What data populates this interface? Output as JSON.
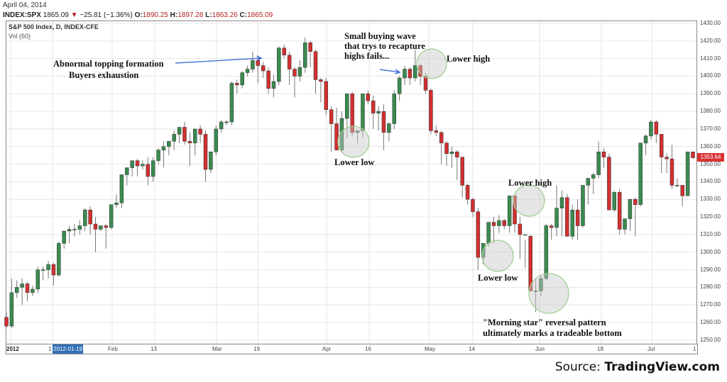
{
  "header": {
    "date": "April 04, 2014",
    "symbol": "INDEX:SPX",
    "last": "1865.09",
    "change_icon": "down-triangle-icon",
    "change": "−25.81 (−1.36%)",
    "open_label": "O:",
    "open": "1890.25",
    "high_label": "H:",
    "high": "1897.28",
    "low_label": "L:",
    "low": "1863.26",
    "close_label": "C:",
    "close": "1865.09"
  },
  "legend": {
    "series": "S&P 500 Index, D, INDEX-CFE",
    "indicator": "Vol (60)"
  },
  "price_tag": "1353.64",
  "x_selected": "2012-01-19",
  "source": {
    "prefix": "Source: ",
    "name": "TradingView.com"
  },
  "colors": {
    "up": "#3a8a4f",
    "down": "#d12f2f",
    "arrow": "#2f62d6",
    "circle": "#9fcf8f",
    "price_tag": "#d93030",
    "selection": "#2f6eb5"
  },
  "annotations": [
    {
      "id": "topping",
      "lines": [
        "Abnormal topping formation",
        "Buyers exhaustion"
      ]
    },
    {
      "id": "buying-wave",
      "lines": [
        "Small buying wave",
        "that trys to recapture",
        "highs fails..."
      ]
    },
    {
      "id": "lower-high-1",
      "lines": [
        "Lower high"
      ]
    },
    {
      "id": "lower-low-1",
      "lines": [
        "Lower low"
      ]
    },
    {
      "id": "lower-high-2",
      "lines": [
        "Lower high"
      ]
    },
    {
      "id": "lower-low-2",
      "lines": [
        "Lower low"
      ]
    },
    {
      "id": "morning-star",
      "lines": [
        "\"Morning star\" reversal pattern",
        "ultimately marks a tradeable bottom"
      ]
    }
  ],
  "chart_data": {
    "type": "candlestick",
    "title": "S&P 500 Index, D, INDEX-CFE",
    "xlabel": "",
    "ylabel": "",
    "ylim": [
      1250,
      1430
    ],
    "y_ticks": [
      "1430.00",
      "1420.00",
      "1410.00",
      "1400.00",
      "1390.00",
      "1380.00",
      "1370.00",
      "1360.00",
      "1350.00",
      "1340.00",
      "1330.00",
      "1320.00",
      "1310.00",
      "1300.00",
      "1290.00",
      "1280.00",
      "1270.00",
      "1260.00",
      "1250.00"
    ],
    "x_ticks": [
      "2012",
      "1",
      "Feb",
      "13",
      "Mar",
      "19",
      "Apr",
      "16",
      "May",
      "14",
      "Jun",
      "18",
      "Jul",
      "1"
    ],
    "grid": true,
    "candles": [
      [
        1263,
        1266,
        1257,
        1258
      ],
      [
        1258,
        1285,
        1257,
        1277
      ],
      [
        1277,
        1284,
        1274,
        1280
      ],
      [
        1280,
        1285,
        1270,
        1282
      ],
      [
        1282,
        1283,
        1272,
        1277
      ],
      [
        1277,
        1281,
        1275,
        1279
      ],
      [
        1279,
        1292,
        1277,
        1290
      ],
      [
        1290,
        1292,
        1284,
        1290
      ],
      [
        1290,
        1295,
        1285,
        1293
      ],
      [
        1293,
        1294,
        1281,
        1287
      ],
      [
        1287,
        1306,
        1286,
        1305
      ],
      [
        1305,
        1311,
        1302,
        1312
      ],
      [
        1312,
        1315,
        1305,
        1313
      ],
      [
        1313,
        1316,
        1309,
        1313
      ],
      [
        1313,
        1318,
        1310,
        1315
      ],
      [
        1315,
        1325,
        1312,
        1324
      ],
      [
        1324,
        1326,
        1310,
        1316
      ],
      [
        1316,
        1320,
        1300,
        1313
      ],
      [
        1313,
        1315,
        1312,
        1315
      ],
      [
        1315,
        1316,
        1302,
        1314
      ],
      [
        1314,
        1326,
        1313,
        1327
      ],
      [
        1327,
        1333,
        1325,
        1328
      ],
      [
        1328,
        1340,
        1325,
        1344
      ],
      [
        1344,
        1346,
        1338,
        1348
      ],
      [
        1348,
        1351,
        1343,
        1352
      ],
      [
        1352,
        1353,
        1343,
        1349
      ],
      [
        1349,
        1352,
        1347,
        1350
      ],
      [
        1350,
        1354,
        1338,
        1343
      ],
      [
        1343,
        1354,
        1340,
        1352
      ],
      [
        1352,
        1359,
        1350,
        1358
      ],
      [
        1358,
        1363,
        1348,
        1360
      ],
      [
        1360,
        1363,
        1355,
        1363
      ],
      [
        1363,
        1369,
        1358,
        1367
      ],
      [
        1367,
        1370,
        1362,
        1371
      ],
      [
        1371,
        1374,
        1361,
        1363
      ],
      [
        1363,
        1368,
        1349,
        1362
      ],
      [
        1362,
        1370,
        1355,
        1370
      ],
      [
        1370,
        1372,
        1362,
        1367
      ],
      [
        1367,
        1369,
        1340,
        1347
      ],
      [
        1347,
        1356,
        1345,
        1357
      ],
      [
        1357,
        1372,
        1355,
        1370
      ],
      [
        1370,
        1375,
        1368,
        1374
      ],
      [
        1374,
        1375,
        1372,
        1374
      ],
      [
        1374,
        1397,
        1372,
        1396
      ],
      [
        1396,
        1398,
        1390,
        1395
      ],
      [
        1395,
        1403,
        1393,
        1402
      ],
      [
        1402,
        1406,
        1400,
        1404
      ],
      [
        1404,
        1414,
        1402,
        1409
      ],
      [
        1409,
        1412,
        1396,
        1406
      ],
      [
        1406,
        1408,
        1399,
        1403
      ],
      [
        1403,
        1405,
        1390,
        1393
      ],
      [
        1393,
        1401,
        1388,
        1397
      ],
      [
        1397,
        1417,
        1395,
        1416
      ],
      [
        1416,
        1418,
        1410,
        1412
      ],
      [
        1412,
        1414,
        1395,
        1404
      ],
      [
        1404,
        1405,
        1388,
        1400
      ],
      [
        1400,
        1409,
        1397,
        1405
      ],
      [
        1405,
        1422,
        1402,
        1419
      ],
      [
        1419,
        1420,
        1405,
        1414
      ],
      [
        1414,
        1415,
        1390,
        1398
      ],
      [
        1398,
        1399,
        1385,
        1397
      ],
      [
        1397,
        1399,
        1378,
        1381
      ],
      [
        1381,
        1383,
        1357,
        1373
      ],
      [
        1373,
        1382,
        1363,
        1358
      ],
      [
        1358,
        1380,
        1357,
        1376
      ],
      [
        1376,
        1390,
        1365,
        1390
      ],
      [
        1390,
        1391,
        1366,
        1368
      ],
      [
        1368,
        1369,
        1362,
        1369
      ],
      [
        1369,
        1390,
        1365,
        1390
      ],
      [
        1390,
        1392,
        1384,
        1386
      ],
      [
        1386,
        1389,
        1370,
        1379
      ],
      [
        1379,
        1383,
        1369,
        1380
      ],
      [
        1380,
        1384,
        1358,
        1368
      ],
      [
        1368,
        1374,
        1363,
        1373
      ],
      [
        1373,
        1392,
        1370,
        1390
      ],
      [
        1390,
        1400,
        1386,
        1399
      ],
      [
        1399,
        1406,
        1395,
        1404
      ],
      [
        1404,
        1405,
        1395,
        1399
      ],
      [
        1399,
        1415,
        1397,
        1406
      ],
      [
        1406,
        1407,
        1395,
        1400
      ],
      [
        1400,
        1402,
        1390,
        1392
      ],
      [
        1392,
        1393,
        1367,
        1369
      ],
      [
        1369,
        1372,
        1366,
        1368
      ],
      [
        1368,
        1369,
        1350,
        1362
      ],
      [
        1362,
        1363,
        1349,
        1356
      ],
      [
        1356,
        1360,
        1348,
        1357
      ],
      [
        1357,
        1358,
        1341,
        1354
      ],
      [
        1354,
        1354,
        1331,
        1338
      ],
      [
        1338,
        1339,
        1327,
        1330
      ],
      [
        1330,
        1331,
        1320,
        1323
      ],
      [
        1323,
        1325,
        1290,
        1297
      ],
      [
        1297,
        1304,
        1293,
        1305
      ],
      [
        1305,
        1313,
        1303,
        1317
      ],
      [
        1317,
        1320,
        1305,
        1315
      ],
      [
        1315,
        1321,
        1311,
        1318
      ],
      [
        1318,
        1319,
        1313,
        1315
      ],
      [
        1315,
        1330,
        1311,
        1332
      ],
      [
        1332,
        1333,
        1311,
        1316
      ],
      [
        1316,
        1320,
        1296,
        1310
      ],
      [
        1310,
        1307,
        1291,
        1310
      ],
      [
        1309,
        1310,
        1278,
        1278
      ],
      [
        1278,
        1285,
        1266,
        1278
      ],
      [
        1278,
        1287,
        1275,
        1285
      ],
      [
        1285,
        1316,
        1284,
        1315
      ],
      [
        1315,
        1316,
        1307,
        1314
      ],
      [
        1314,
        1338,
        1309,
        1325
      ],
      [
        1325,
        1335,
        1309,
        1331
      ],
      [
        1331,
        1333,
        1310,
        1309
      ],
      [
        1309,
        1327,
        1307,
        1324
      ],
      [
        1324,
        1330,
        1307,
        1315
      ],
      [
        1315,
        1335,
        1314,
        1338
      ],
      [
        1338,
        1342,
        1327,
        1342
      ],
      [
        1342,
        1345,
        1333,
        1344
      ],
      [
        1344,
        1363,
        1342,
        1357
      ],
      [
        1357,
        1359,
        1348,
        1354
      ],
      [
        1354,
        1356,
        1325,
        1324
      ],
      [
        1324,
        1335,
        1323,
        1334
      ],
      [
        1334,
        1336,
        1310,
        1313
      ],
      [
        1313,
        1318,
        1310,
        1319
      ],
      [
        1319,
        1329,
        1312,
        1330
      ],
      [
        1330,
        1331,
        1309,
        1327
      ],
      [
        1327,
        1355,
        1326,
        1362
      ],
      [
        1362,
        1367,
        1355,
        1366
      ],
      [
        1366,
        1375,
        1364,
        1374
      ],
      [
        1374,
        1375,
        1362,
        1367
      ],
      [
        1367,
        1367,
        1345,
        1354
      ],
      [
        1354,
        1356,
        1345,
        1353
      ],
      [
        1353,
        1361,
        1336,
        1338
      ],
      [
        1338,
        1342,
        1337,
        1338
      ],
      [
        1338,
        1338,
        1326,
        1332
      ],
      [
        1332,
        1357,
        1332,
        1357
      ],
      [
        1357,
        1356,
        1353,
        1353.64
      ]
    ]
  }
}
